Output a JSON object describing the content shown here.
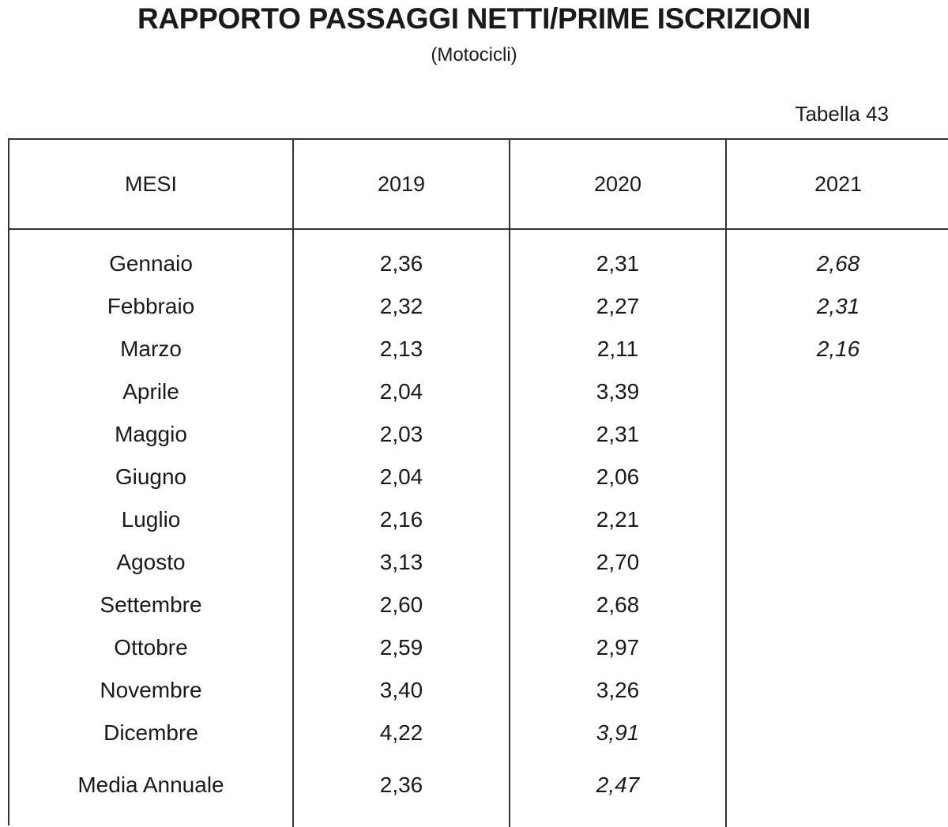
{
  "document": {
    "title": "RAPPORTO PASSAGGI NETTI/PRIME ISCRIZIONI",
    "subtitle": "(Motocicli)",
    "table_ref": "Tabella 43"
  },
  "table": {
    "headers": [
      "MESI",
      "2019",
      "2020",
      "2021"
    ],
    "rows": [
      {
        "label": "Gennaio",
        "values": [
          "2,36",
          "2,31",
          "2,68"
        ],
        "italic": [
          false,
          false,
          true
        ]
      },
      {
        "label": "Febbraio",
        "values": [
          "2,32",
          "2,27",
          "2,31"
        ],
        "italic": [
          false,
          false,
          true
        ]
      },
      {
        "label": "Marzo",
        "values": [
          "2,13",
          "2,11",
          "2,16"
        ],
        "italic": [
          false,
          false,
          true
        ]
      },
      {
        "label": "Aprile",
        "values": [
          "2,04",
          "3,39",
          ""
        ],
        "italic": [
          false,
          false,
          false
        ]
      },
      {
        "label": "Maggio",
        "values": [
          "2,03",
          "2,31",
          ""
        ],
        "italic": [
          false,
          false,
          false
        ]
      },
      {
        "label": "Giugno",
        "values": [
          "2,04",
          "2,06",
          ""
        ],
        "italic": [
          false,
          false,
          false
        ]
      },
      {
        "label": "Luglio",
        "values": [
          "2,16",
          "2,21",
          ""
        ],
        "italic": [
          false,
          false,
          false
        ]
      },
      {
        "label": "Agosto",
        "values": [
          "3,13",
          "2,70",
          ""
        ],
        "italic": [
          false,
          false,
          false
        ]
      },
      {
        "label": "Settembre",
        "values": [
          "2,60",
          "2,68",
          ""
        ],
        "italic": [
          false,
          false,
          false
        ]
      },
      {
        "label": "Ottobre",
        "values": [
          "2,59",
          "2,97",
          ""
        ],
        "italic": [
          false,
          false,
          false
        ]
      },
      {
        "label": "Novembre",
        "values": [
          "3,40",
          "3,26",
          ""
        ],
        "italic": [
          false,
          false,
          false
        ]
      },
      {
        "label": "Dicembre",
        "values": [
          "4,22",
          "3,91",
          ""
        ],
        "italic": [
          false,
          true,
          false
        ]
      },
      {
        "label": "Media Annuale",
        "values": [
          "2,36",
          "2,47",
          ""
        ],
        "italic": [
          false,
          true,
          false
        ]
      }
    ]
  }
}
